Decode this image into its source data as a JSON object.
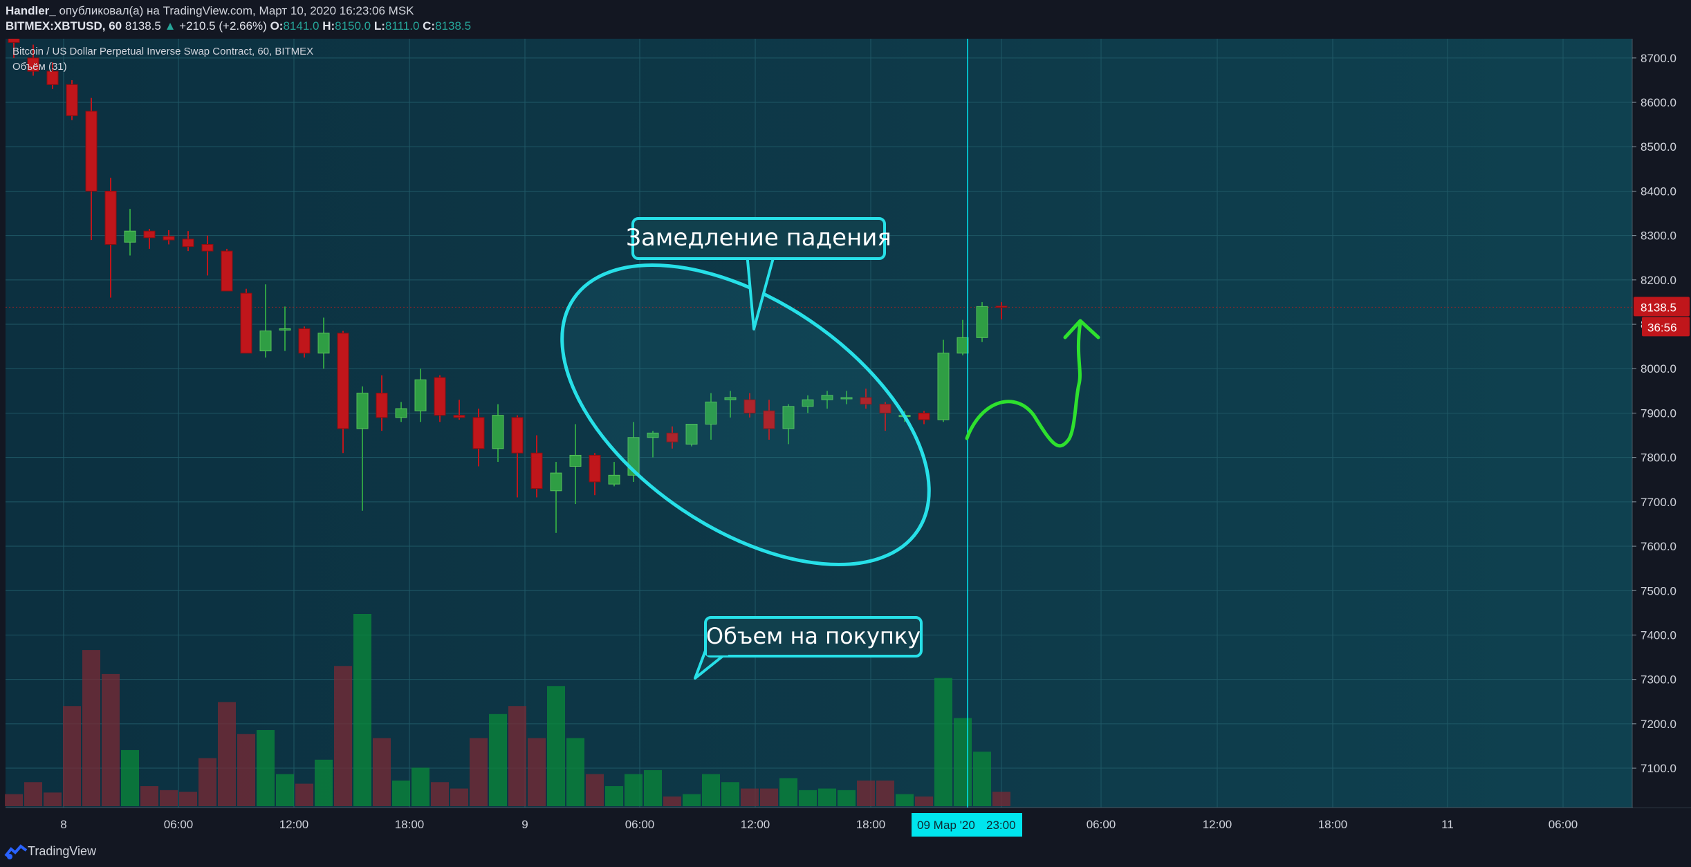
{
  "header": {
    "author": "Handler_",
    "published_text": " опубликовал(а) на TradingView.com, Март 10, 2020 16:23:06 MSK",
    "symbol": "BITMEX:XBTUSD, 60",
    "last": "8138.5",
    "change": "+210.5 (+2.66%)",
    "open_label": "O:",
    "open": "8141.0",
    "high_label": "H:",
    "high": "8150.0",
    "low_label": "L:",
    "low": "8111.0",
    "close_label": "C:",
    "close": "8138.5"
  },
  "legend": {
    "instrument": "Bitcoin / US Dollar Perpetual Inverse Swap Contract, 60, BITMEX",
    "volume": "Объём (31)"
  },
  "footer": {
    "brand": "TradingView"
  },
  "annotations": {
    "slowdown": "Замедление падения",
    "buy_volume": "Объем на покупку"
  },
  "colors": {
    "background": "#0e3a4a",
    "bull": "#2f9e44",
    "bear": "#c0161b",
    "annotation": "#27e0e8",
    "arrow": "#2ee12e",
    "price_tag": "#c0161b",
    "crosshair_tag": "#00e5ee"
  },
  "chart_data": {
    "type": "candlestick",
    "timeframe": "60",
    "y_axis": {
      "ticks": [
        "8700.0",
        "8600.0",
        "8500.0",
        "8400.0",
        "8300.0",
        "8200.0",
        "8100.0",
        "8000.0",
        "7900.0",
        "7800.0",
        "7700.0",
        "7600.0",
        "7500.0",
        "7400.0",
        "7300.0",
        "7200.0",
        "7100.0"
      ],
      "range": [
        7030,
        8720
      ]
    },
    "x_axis": {
      "ticks": [
        "8",
        "06:00",
        "12:00",
        "18:00",
        "9",
        "06:00",
        "12:00",
        "18:00",
        "23:00",
        "06:00",
        "12:00",
        "18:00",
        "11",
        "06:00"
      ]
    },
    "last_price": "8138.5",
    "countdown": "36:56",
    "crosshair_label": "09 Мар '20",
    "candles": [
      {
        "o": 8760,
        "h": 8780,
        "l": 8700,
        "c": 8735,
        "v": 15
      },
      {
        "o": 8700,
        "h": 8730,
        "l": 8660,
        "c": 8670,
        "v": 30
      },
      {
        "o": 8670,
        "h": 8690,
        "l": 8630,
        "c": 8640,
        "v": 17
      },
      {
        "o": 8640,
        "h": 8650,
        "l": 8560,
        "c": 8570,
        "v": 125
      },
      {
        "o": 8580,
        "h": 8610,
        "l": 8290,
        "c": 8400,
        "v": 195
      },
      {
        "o": 8400,
        "h": 8430,
        "l": 8160,
        "c": 8280,
        "v": 165
      },
      {
        "o": 8285,
        "h": 8360,
        "l": 8255,
        "c": 8310,
        "v": 70
      },
      {
        "o": 8310,
        "h": 8315,
        "l": 8270,
        "c": 8295,
        "v": 25
      },
      {
        "o": 8298,
        "h": 8312,
        "l": 8280,
        "c": 8290,
        "v": 20
      },
      {
        "o": 8292,
        "h": 8310,
        "l": 8265,
        "c": 8275,
        "v": 18
      },
      {
        "o": 8280,
        "h": 8300,
        "l": 8210,
        "c": 8265,
        "v": 60
      },
      {
        "o": 8265,
        "h": 8270,
        "l": 8180,
        "c": 8175,
        "v": 130
      },
      {
        "o": 8170,
        "h": 8180,
        "l": 8050,
        "c": 8035,
        "v": 90
      },
      {
        "o": 8040,
        "h": 8190,
        "l": 8025,
        "c": 8085,
        "v": 95
      },
      {
        "o": 8090,
        "h": 8140,
        "l": 8040,
        "c": 8090,
        "v": 40
      },
      {
        "o": 8090,
        "h": 8095,
        "l": 8025,
        "c": 8035,
        "v": 28
      },
      {
        "o": 8035,
        "h": 8115,
        "l": 8000,
        "c": 8080,
        "v": 58
      },
      {
        "o": 8080,
        "h": 8085,
        "l": 7810,
        "c": 7865,
        "v": 175
      },
      {
        "o": 7865,
        "h": 7960,
        "l": 7680,
        "c": 7945,
        "v": 240
      },
      {
        "o": 7945,
        "h": 7985,
        "l": 7860,
        "c": 7890,
        "v": 85
      },
      {
        "o": 7890,
        "h": 7925,
        "l": 7880,
        "c": 7910,
        "v": 32
      },
      {
        "o": 7905,
        "h": 8000,
        "l": 7880,
        "c": 7975,
        "v": 48
      },
      {
        "o": 7980,
        "h": 7985,
        "l": 7880,
        "c": 7895,
        "v": 30
      },
      {
        "o": 7895,
        "h": 7930,
        "l": 7885,
        "c": 7890,
        "v": 22
      },
      {
        "o": 7890,
        "h": 7910,
        "l": 7780,
        "c": 7820,
        "v": 85
      },
      {
        "o": 7820,
        "h": 7920,
        "l": 7790,
        "c": 7895,
        "v": 115
      },
      {
        "o": 7890,
        "h": 7895,
        "l": 7710,
        "c": 7810,
        "v": 125
      },
      {
        "o": 7810,
        "h": 7850,
        "l": 7710,
        "c": 7730,
        "v": 85
      },
      {
        "o": 7725,
        "h": 7790,
        "l": 7630,
        "c": 7765,
        "v": 150
      },
      {
        "o": 7780,
        "h": 7875,
        "l": 7695,
        "c": 7805,
        "v": 85
      },
      {
        "o": 7805,
        "h": 7810,
        "l": 7715,
        "c": 7745,
        "v": 40
      },
      {
        "o": 7740,
        "h": 7790,
        "l": 7735,
        "c": 7760,
        "v": 25
      },
      {
        "o": 7760,
        "h": 7880,
        "l": 7745,
        "c": 7845,
        "v": 40
      },
      {
        "o": 7845,
        "h": 7860,
        "l": 7800,
        "c": 7855,
        "v": 45
      },
      {
        "o": 7855,
        "h": 7870,
        "l": 7820,
        "c": 7835,
        "v": 12
      },
      {
        "o": 7830,
        "h": 7870,
        "l": 7825,
        "c": 7875,
        "v": 15
      },
      {
        "o": 7875,
        "h": 7945,
        "l": 7840,
        "c": 7925,
        "v": 40
      },
      {
        "o": 7930,
        "h": 7950,
        "l": 7890,
        "c": 7935,
        "v": 30
      },
      {
        "o": 7930,
        "h": 7945,
        "l": 7890,
        "c": 7900,
        "v": 22
      },
      {
        "o": 7905,
        "h": 7930,
        "l": 7840,
        "c": 7865,
        "v": 22
      },
      {
        "o": 7865,
        "h": 7920,
        "l": 7830,
        "c": 7915,
        "v": 35
      },
      {
        "o": 7915,
        "h": 7940,
        "l": 7900,
        "c": 7930,
        "v": 20
      },
      {
        "o": 7930,
        "h": 7950,
        "l": 7910,
        "c": 7940,
        "v": 22
      },
      {
        "o": 7935,
        "h": 7950,
        "l": 7920,
        "c": 7935,
        "v": 20
      },
      {
        "o": 7935,
        "h": 7955,
        "l": 7910,
        "c": 7920,
        "v": 32
      },
      {
        "o": 7920,
        "h": 7925,
        "l": 7860,
        "c": 7900,
        "v": 32
      },
      {
        "o": 7895,
        "h": 7905,
        "l": 7880,
        "c": 7895,
        "v": 15
      },
      {
        "o": 7900,
        "h": 7905,
        "l": 7875,
        "c": 7885,
        "v": 12
      },
      {
        "o": 7885,
        "h": 8065,
        "l": 7880,
        "c": 8035,
        "v": 160
      },
      {
        "o": 8035,
        "h": 8110,
        "l": 8030,
        "c": 8070,
        "v": 110
      },
      {
        "o": 8070,
        "h": 8150,
        "l": 8060,
        "c": 8140,
        "v": 68
      },
      {
        "o": 8141,
        "h": 8150,
        "l": 8111,
        "c": 8138.5,
        "v": 18
      }
    ]
  }
}
